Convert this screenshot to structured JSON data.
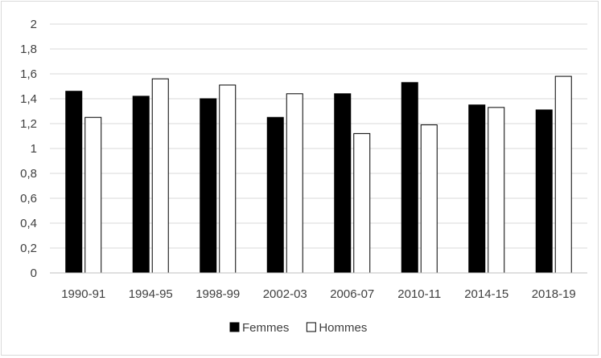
{
  "chart_data": {
    "type": "bar",
    "categories": [
      "1990-91",
      "1994-95",
      "1998-99",
      "2002-03",
      "2006-07",
      "2010-11",
      "2014-15",
      "2018-19"
    ],
    "series": [
      {
        "name": "Femmes",
        "color": "#000000",
        "values": [
          1.46,
          1.42,
          1.4,
          1.25,
          1.44,
          1.53,
          1.35,
          1.31
        ]
      },
      {
        "name": "Hommes",
        "color": "#ffffff",
        "values": [
          1.25,
          1.56,
          1.51,
          1.44,
          1.12,
          1.19,
          1.33,
          1.58
        ]
      }
    ],
    "yticks": [
      "0",
      "0,2",
      "0,4",
      "0,6",
      "0,8",
      "1",
      "1,2",
      "1,4",
      "1,6",
      "1,8",
      "2"
    ],
    "ylim": [
      0,
      2
    ],
    "grid": true,
    "legend_position": "bottom"
  }
}
